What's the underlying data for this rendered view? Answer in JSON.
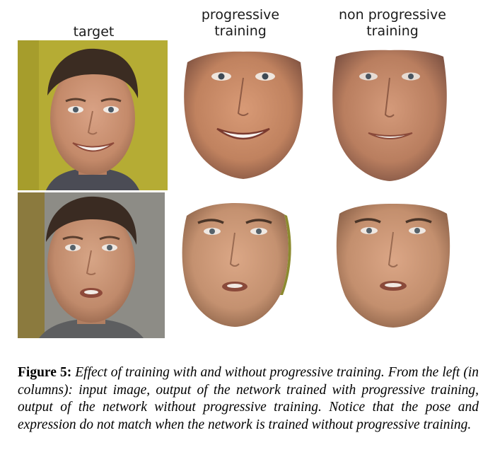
{
  "columns": {
    "target": "target",
    "progressive": "progressive\ntraining",
    "non_progressive": "non progressive\ntraining"
  },
  "caption": {
    "label": "Figure 5:",
    "text": "Effect of training with and without progressive training. From the left (in columns): input image, output of the network trained with progressive training, output of the network without progressive training. Notice that the pose and expression do not match when the network is trained without progressive training."
  },
  "colors": {
    "row1_background": "#b5ac34",
    "row2_background": "#8d8c86",
    "skin_row1": "#c98d6c",
    "skin_row2": "#c9966f"
  }
}
